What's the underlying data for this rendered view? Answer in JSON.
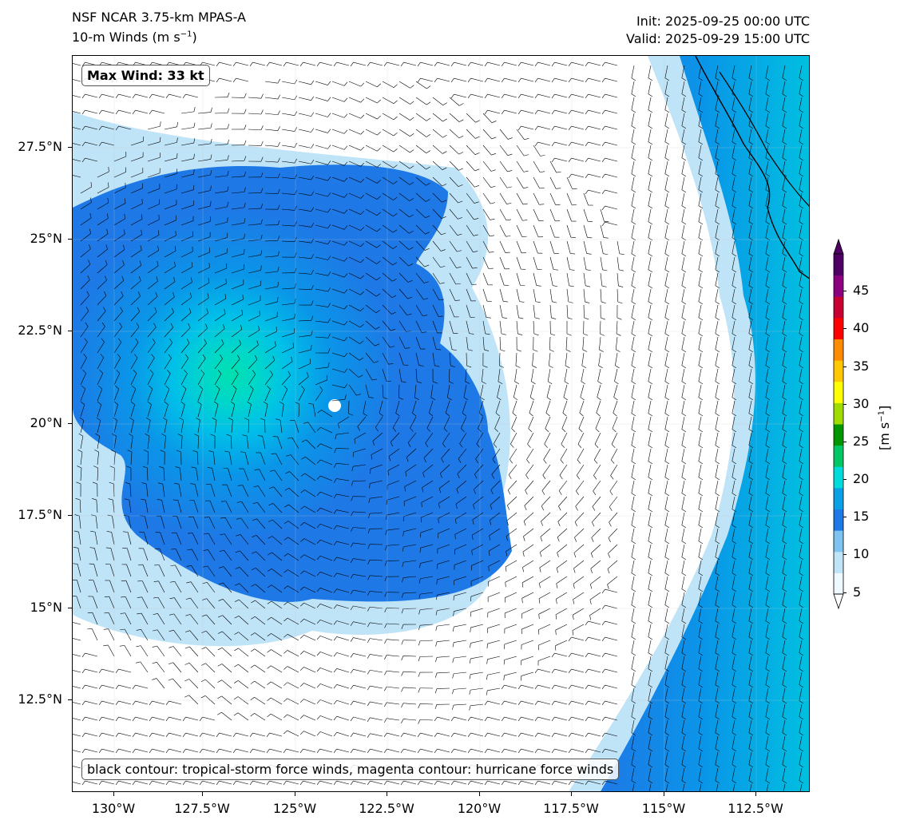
{
  "header": {
    "model": "NSF NCAR 3.75-km MPAS-A",
    "field_prefix": "10-m Winds (m s",
    "field_exp": "−1",
    "field_suffix": ")",
    "init": "Init: 2025-09-25 00:00 UTC",
    "valid": "Valid: 2025-09-29 15:00 UTC"
  },
  "annotations": {
    "max_wind": "Max Wind: 33 kt",
    "contour_note": "black contour: tropical-storm force winds, magenta contour: hurricane force winds"
  },
  "axes": {
    "y_ticks": [
      "27.5°N",
      "25°N",
      "22.5°N",
      "20°N",
      "17.5°N",
      "15°N",
      "12.5°N"
    ],
    "x_ticks": [
      "130°W",
      "127.5°W",
      "125°W",
      "122.5°W",
      "120°W",
      "117.5°W",
      "115°W",
      "112.5°W"
    ]
  },
  "colorbar": {
    "ticks": [
      "45",
      "40",
      "35",
      "30",
      "25",
      "20",
      "15",
      "10",
      "5"
    ],
    "label_prefix": "[m s",
    "label_exp": "−1",
    "label_suffix": "]",
    "colors": [
      "#f0f8ff",
      "#bfe3f7",
      "#7fc4f0",
      "#1e78e6",
      "#0aa0e6",
      "#00dcdc",
      "#00c864",
      "#009600",
      "#a0dc00",
      "#ffff00",
      "#ffc800",
      "#ff8c00",
      "#ff0000",
      "#c80032",
      "#8c0080",
      "#500064"
    ]
  },
  "map_data": {
    "storm_center": {
      "lat": 20.5,
      "lon": -124.2
    },
    "lat_range": [
      10.0,
      30.0
    ],
    "lon_range": [
      -131.0,
      -111.0
    ]
  }
}
